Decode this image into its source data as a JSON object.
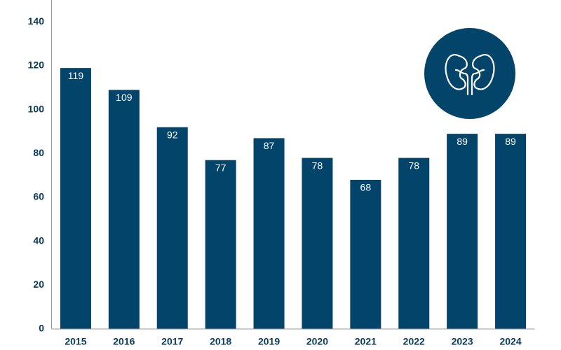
{
  "chart_data": {
    "type": "bar",
    "categories": [
      "2015",
      "2016",
      "2017",
      "2018",
      "2019",
      "2020",
      "2021",
      "2022",
      "2023",
      "2024"
    ],
    "values": [
      119,
      109,
      92,
      77,
      87,
      78,
      68,
      78,
      89,
      89
    ],
    "color": "#02446a",
    "ylim": [
      0,
      150
    ],
    "yticks": [
      0,
      20,
      40,
      60,
      80,
      100,
      120,
      140
    ]
  }
}
